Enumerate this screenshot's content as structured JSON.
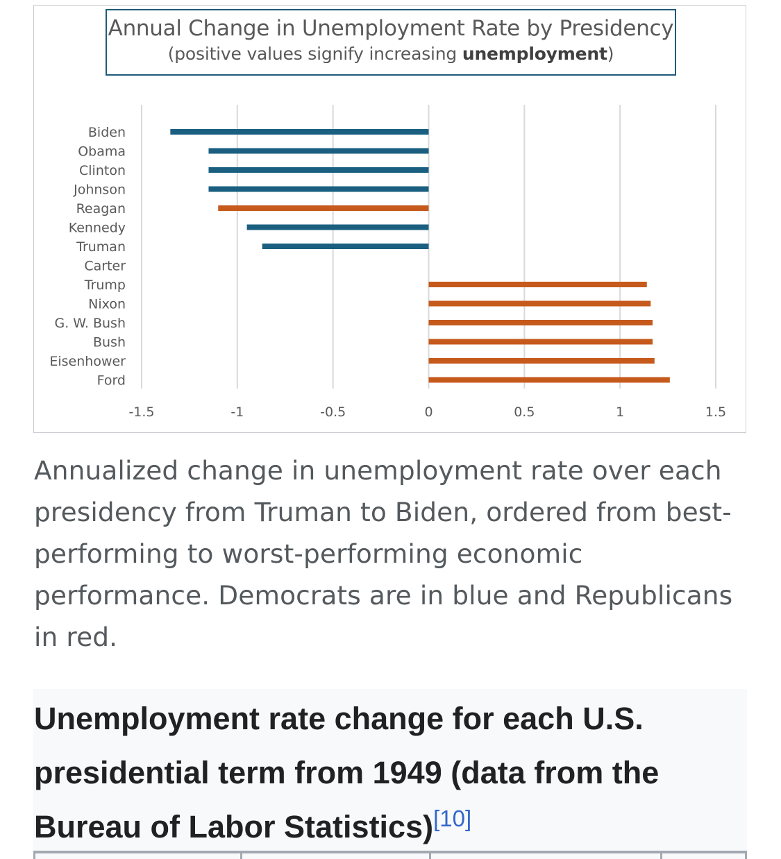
{
  "chart_data": {
    "type": "bar",
    "orientation": "horizontal",
    "title": "Annual Change in Unemployment Rate by Presidency",
    "subtitle_prefix": "(positive values signify increasing ",
    "subtitle_emphasis": "unemployment",
    "subtitle_suffix": ")",
    "categories": [
      "Biden",
      "Obama",
      "Clinton",
      "Johnson",
      "Reagan",
      "Kennedy",
      "Truman",
      "Carter",
      "Trump",
      "Nixon",
      "G. W. Bush",
      "Bush",
      "Eisenhower",
      "Ford"
    ],
    "values": [
      -1.35,
      -1.15,
      -1.15,
      -1.15,
      -1.1,
      -0.95,
      -0.87,
      0,
      1.14,
      1.16,
      1.17,
      1.17,
      1.18,
      1.26
    ],
    "party": [
      "D",
      "D",
      "D",
      "D",
      "R",
      "D",
      "D",
      "D",
      "R",
      "R",
      "R",
      "R",
      "R",
      "R"
    ],
    "colors": {
      "D": "#1a5f80",
      "R": "#c55a1c"
    },
    "xlim": [
      -1.5,
      1.5
    ],
    "xticks": [
      -1.5,
      -1,
      -0.5,
      0,
      0.5,
      1,
      1.5
    ],
    "xtick_labels": [
      "-1.5",
      "-1",
      "-0.5",
      "0",
      "0.5",
      "1",
      "1.5"
    ],
    "grid": true,
    "xlabel": "",
    "ylabel": ""
  },
  "caption": "Annualized change in unemployment rate over each presidency from Truman to Biden, ordered from best-performing to worst-performing economic performance. Democrats are in blue and Republicans in red.",
  "table": {
    "caption": "Unemployment rate change for each U.S. presidential term from 1949 (data from the Bureau of Labor Statistics)",
    "ref_label": "[10]"
  }
}
